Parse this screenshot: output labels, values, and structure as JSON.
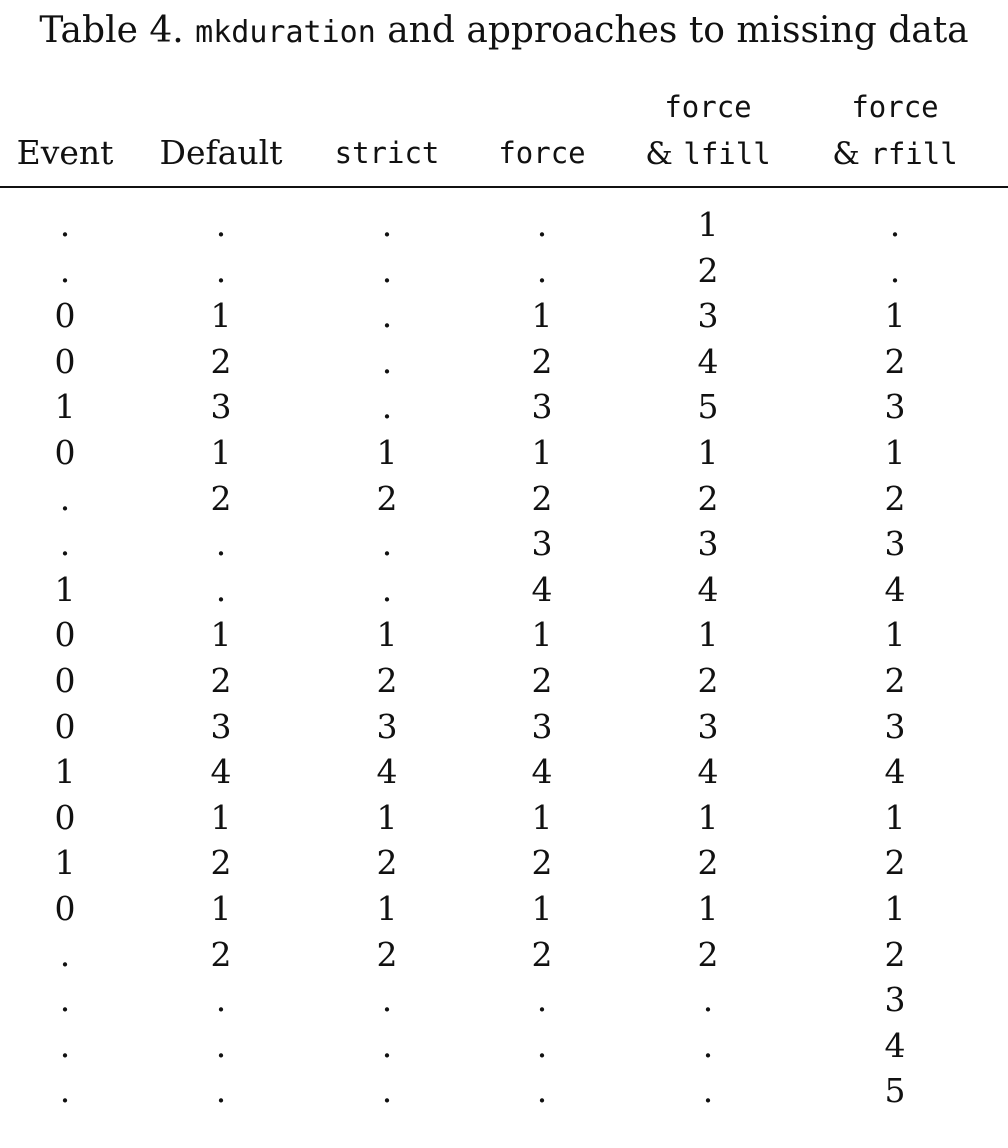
{
  "caption": {
    "prefix": "Table 4.",
    "command": "mkduration",
    "suffix": "and approaches to missing data"
  },
  "headers": [
    {
      "line1": "",
      "line2": "Event",
      "mono": false
    },
    {
      "line1": "",
      "line2": "Default",
      "mono": false
    },
    {
      "line1": "",
      "line2": "strict",
      "mono": true
    },
    {
      "line1": "",
      "line2": "force",
      "mono": true
    },
    {
      "line1": "force",
      "amp": "&",
      "line2": "lfill",
      "mono": true
    },
    {
      "line1": "force",
      "amp": "&",
      "line2": "rfill",
      "mono": true
    }
  ],
  "rows": [
    [
      ".",
      ".",
      ".",
      ".",
      "1",
      "."
    ],
    [
      ".",
      ".",
      ".",
      ".",
      "2",
      "."
    ],
    [
      "0",
      "1",
      ".",
      "1",
      "3",
      "1"
    ],
    [
      "0",
      "2",
      ".",
      "2",
      "4",
      "2"
    ],
    [
      "1",
      "3",
      ".",
      "3",
      "5",
      "3"
    ],
    [
      "0",
      "1",
      "1",
      "1",
      "1",
      "1"
    ],
    [
      ".",
      "2",
      "2",
      "2",
      "2",
      "2"
    ],
    [
      ".",
      ".",
      ".",
      "3",
      "3",
      "3"
    ],
    [
      "1",
      ".",
      ".",
      "4",
      "4",
      "4"
    ],
    [
      "0",
      "1",
      "1",
      "1",
      "1",
      "1"
    ],
    [
      "0",
      "2",
      "2",
      "2",
      "2",
      "2"
    ],
    [
      "0",
      "3",
      "3",
      "3",
      "3",
      "3"
    ],
    [
      "1",
      "4",
      "4",
      "4",
      "4",
      "4"
    ],
    [
      "0",
      "1",
      "1",
      "1",
      "1",
      "1"
    ],
    [
      "1",
      "2",
      "2",
      "2",
      "2",
      "2"
    ],
    [
      "0",
      "1",
      "1",
      "1",
      "1",
      "1"
    ],
    [
      ".",
      "2",
      "2",
      "2",
      "2",
      "2"
    ],
    [
      ".",
      ".",
      ".",
      ".",
      ".",
      "3"
    ],
    [
      ".",
      ".",
      ".",
      ".",
      ".",
      "4"
    ],
    [
      ".",
      ".",
      ".",
      ".",
      ".",
      "5"
    ]
  ]
}
